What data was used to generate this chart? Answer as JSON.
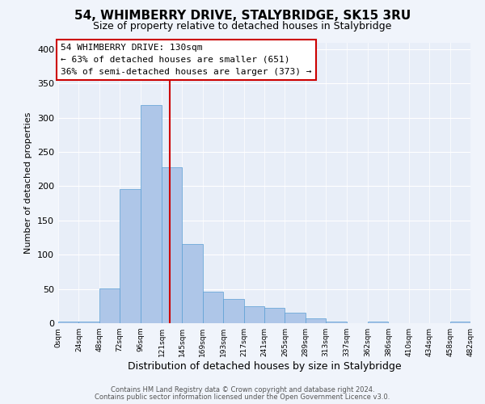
{
  "title": "54, WHIMBERRY DRIVE, STALYBRIDGE, SK15 3RU",
  "subtitle": "Size of property relative to detached houses in Stalybridge",
  "xlabel": "Distribution of detached houses by size in Stalybridge",
  "ylabel": "Number of detached properties",
  "bar_edges": [
    0,
    24,
    48,
    72,
    96,
    121,
    145,
    169,
    193,
    217,
    241,
    265,
    289,
    313,
    337,
    362,
    386,
    410,
    434,
    458,
    482
  ],
  "bar_heights": [
    2,
    2,
    51,
    196,
    319,
    228,
    116,
    46,
    35,
    25,
    23,
    15,
    7,
    2,
    0,
    2,
    0,
    0,
    0,
    2
  ],
  "bar_color": "#aec6e8",
  "bar_edge_color": "#5a9fd4",
  "vline_x": 130,
  "vline_color": "#cc0000",
  "annotation_title": "54 WHIMBERRY DRIVE: 130sqm",
  "annotation_line1": "← 63% of detached houses are smaller (651)",
  "annotation_line2": "36% of semi-detached houses are larger (373) →",
  "annotation_box_color": "#ffffff",
  "annotation_box_edge": "#cc0000",
  "ylim": [
    0,
    410
  ],
  "yticks": [
    0,
    50,
    100,
    150,
    200,
    250,
    300,
    350,
    400
  ],
  "xtick_labels": [
    "0sqm",
    "24sqm",
    "48sqm",
    "72sqm",
    "96sqm",
    "121sqm",
    "145sqm",
    "169sqm",
    "193sqm",
    "217sqm",
    "241sqm",
    "265sqm",
    "289sqm",
    "313sqm",
    "337sqm",
    "362sqm",
    "386sqm",
    "410sqm",
    "434sqm",
    "458sqm",
    "482sqm"
  ],
  "footer1": "Contains HM Land Registry data © Crown copyright and database right 2024.",
  "footer2": "Contains public sector information licensed under the Open Government Licence v3.0.",
  "bg_color": "#f0f4fb",
  "plot_bg_color": "#e8eef8",
  "title_fontsize": 11,
  "subtitle_fontsize": 9
}
